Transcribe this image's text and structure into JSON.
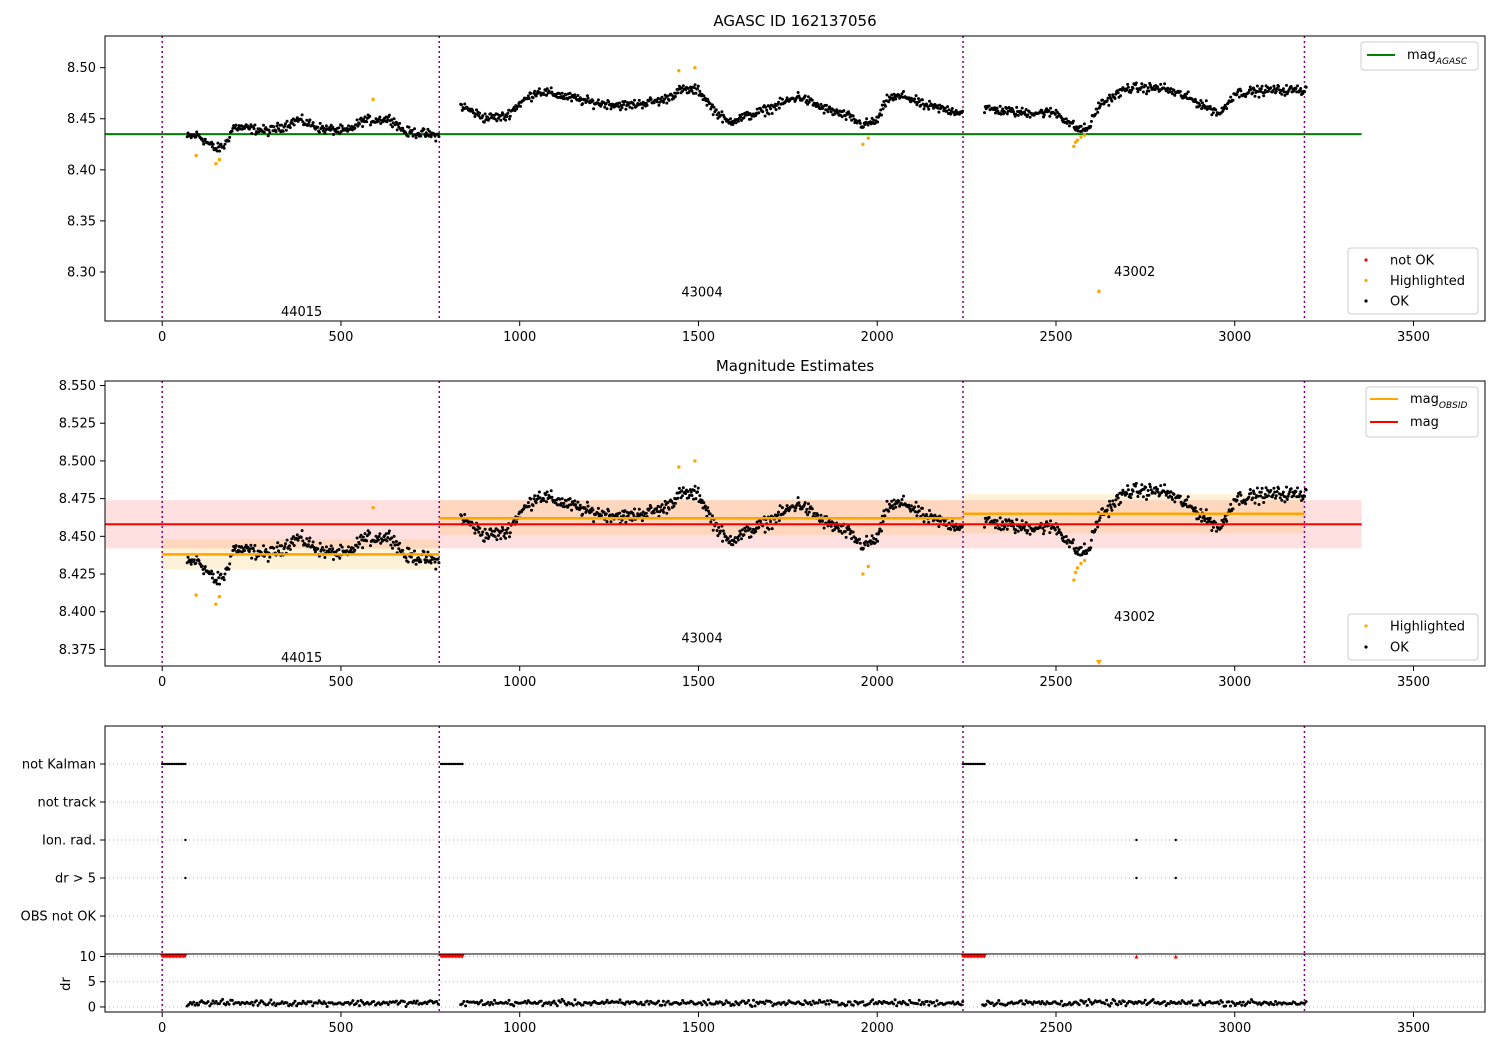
{
  "chart_data": [
    {
      "type": "scatter",
      "title": "AGASC ID 162137056",
      "xlim": [
        -160,
        3700
      ],
      "ylim": [
        8.252,
        8.531
      ],
      "x_ticks": [
        0,
        500,
        1000,
        1500,
        2000,
        2500,
        3000,
        3500
      ],
      "y_ticks": [
        8.3,
        8.35,
        8.4,
        8.45,
        8.5
      ],
      "obs_boundaries": [
        0,
        775,
        2240,
        3195
      ],
      "obs_labels": [
        {
          "text": "44015",
          "x": 390,
          "y": 8.262
        },
        {
          "text": "43004",
          "x": 1510,
          "y": 8.281
        },
        {
          "text": "43002",
          "x": 2720,
          "y": 8.301
        }
      ],
      "reference_lines": [
        {
          "name": "mag_AGASC",
          "y": 8.435,
          "x": [
            -160,
            3355
          ],
          "color": "#008000"
        }
      ],
      "legend_lines": {
        "entries": [
          {
            "label": "mag",
            "sub": "AGASC",
            "color": "#008000"
          }
        ],
        "position": "upper-right"
      },
      "legend_points": {
        "entries": [
          {
            "label": "not OK",
            "color": "#ff0000"
          },
          {
            "label": "Highlighted",
            "color": "#ffa500"
          },
          {
            "label": "OK",
            "color": "#000000"
          }
        ],
        "position": "lower-right"
      },
      "highlighted_points": [
        [
          95,
          8.414
        ],
        [
          150,
          8.406
        ],
        [
          160,
          8.41
        ],
        [
          590,
          8.469
        ],
        [
          1445,
          8.497
        ],
        [
          1490,
          8.5
        ],
        [
          1960,
          8.425
        ],
        [
          1975,
          8.431
        ],
        [
          2550,
          8.423
        ],
        [
          2555,
          8.427
        ],
        [
          2560,
          8.429
        ],
        [
          2570,
          8.432
        ],
        [
          2580,
          8.434
        ],
        [
          2620,
          8.281
        ]
      ],
      "segments": [
        {
          "x": [
            70,
            775
          ],
          "profile": [
            [
              70,
              8.432
            ],
            [
              100,
              8.434
            ],
            [
              150,
              8.42
            ],
            [
              175,
              8.424
            ],
            [
              200,
              8.442
            ],
            [
              300,
              8.438
            ],
            [
              340,
              8.443
            ],
            [
              380,
              8.449
            ],
            [
              450,
              8.44
            ],
            [
              520,
              8.438
            ],
            [
              560,
              8.448
            ],
            [
              640,
              8.45
            ],
            [
              680,
              8.437
            ],
            [
              720,
              8.436
            ],
            [
              775,
              8.433
            ]
          ]
        },
        {
          "x": [
            835,
            2240
          ],
          "profile": [
            [
              835,
              8.463
            ],
            [
              900,
              8.451
            ],
            [
              960,
              8.452
            ],
            [
              1000,
              8.465
            ],
            [
              1050,
              8.477
            ],
            [
              1100,
              8.474
            ],
            [
              1200,
              8.466
            ],
            [
              1300,
              8.463
            ],
            [
              1400,
              8.468
            ],
            [
              1450,
              8.478
            ],
            [
              1500,
              8.478
            ],
            [
              1540,
              8.46
            ],
            [
              1580,
              8.447
            ],
            [
              1650,
              8.454
            ],
            [
              1700,
              8.46
            ],
            [
              1780,
              8.472
            ],
            [
              1850,
              8.46
            ],
            [
              1920,
              8.452
            ],
            [
              1960,
              8.444
            ],
            [
              2000,
              8.448
            ],
            [
              2030,
              8.47
            ],
            [
              2080,
              8.472
            ],
            [
              2130,
              8.463
            ],
            [
              2240,
              8.456
            ]
          ]
        },
        {
          "x": [
            2300,
            3200
          ],
          "profile": [
            [
              2300,
              8.46
            ],
            [
              2400,
              8.456
            ],
            [
              2500,
              8.456
            ],
            [
              2560,
              8.44
            ],
            [
              2590,
              8.44
            ],
            [
              2620,
              8.463
            ],
            [
              2700,
              8.48
            ],
            [
              2800,
              8.48
            ],
            [
              2860,
              8.472
            ],
            [
              2920,
              8.462
            ],
            [
              2960,
              8.455
            ],
            [
              3000,
              8.475
            ],
            [
              3100,
              8.478
            ],
            [
              3200,
              8.478
            ]
          ]
        }
      ]
    },
    {
      "type": "scatter",
      "title": "Magnitude Estimates",
      "xlim": [
        -160,
        3700
      ],
      "ylim": [
        8.364,
        8.553
      ],
      "x_ticks": [
        0,
        500,
        1000,
        1500,
        2000,
        2500,
        3000,
        3500
      ],
      "y_ticks": [
        8.375,
        8.4,
        8.425,
        8.45,
        8.475,
        8.5,
        8.525,
        8.55
      ],
      "obs_boundaries": [
        0,
        775,
        2240,
        3195
      ],
      "obs_labels": [
        {
          "text": "44015",
          "x": 390,
          "y": 8.37
        },
        {
          "text": "43004",
          "x": 1510,
          "y": 8.383
        },
        {
          "text": "43002",
          "x": 2720,
          "y": 8.397
        }
      ],
      "mag": {
        "name": "mag",
        "y": 8.458,
        "band": [
          8.442,
          8.474
        ],
        "x": [
          -160,
          3355
        ],
        "color": "#ff0000",
        "band_color": "#ffcccc"
      },
      "mag_obsid": [
        {
          "x": [
            0,
            775
          ],
          "y": 8.438,
          "band": [
            8.428,
            8.448
          ]
        },
        {
          "x": [
            775,
            2240
          ],
          "y": 8.462,
          "band": [
            8.451,
            8.474
          ]
        },
        {
          "x": [
            2240,
            3195
          ],
          "y": 8.465,
          "band": [
            8.452,
            8.478
          ]
        }
      ],
      "mag_obsid_color": "#ffa500",
      "legend_lines": {
        "entries": [
          {
            "label": "mag",
            "sub": "OBSID",
            "color": "#ffa500"
          },
          {
            "label": "mag",
            "sub": "",
            "color": "#ff0000"
          }
        ],
        "position": "upper-right"
      },
      "legend_points": {
        "entries": [
          {
            "label": "Highlighted",
            "color": "#ffa500"
          },
          {
            "label": "OK",
            "color": "#000000"
          }
        ],
        "position": "lower-right"
      },
      "highlighted_points": [
        [
          95,
          8.411
        ],
        [
          150,
          8.405
        ],
        [
          160,
          8.41
        ],
        [
          590,
          8.469
        ],
        [
          1445,
          8.496
        ],
        [
          1490,
          8.5
        ],
        [
          1960,
          8.425
        ],
        [
          1975,
          8.43
        ],
        [
          2550,
          8.421
        ],
        [
          2555,
          8.426
        ],
        [
          2560,
          8.429
        ],
        [
          2570,
          8.432
        ],
        [
          2580,
          8.434
        ]
      ],
      "offscale_marker": {
        "x": 2620,
        "color": "#ffa500"
      }
    },
    {
      "type": "scatter",
      "title": "",
      "xlim": [
        -160,
        3700
      ],
      "x_ticks": [
        0,
        500,
        1000,
        1500,
        2000,
        2500,
        3000,
        3500
      ],
      "obs_boundaries": [
        0,
        775,
        2240,
        3195
      ],
      "flag_rows": [
        "not Kalman",
        "not track",
        "Ion. rad.",
        "dr > 5",
        "OBS not OK"
      ],
      "flags": {
        "not Kalman": [
          [
            0,
            65
          ],
          [
            780,
            840
          ],
          [
            2240,
            2300
          ]
        ],
        "not track": [],
        "Ion. rad.": [
          [
            65,
            65
          ],
          [
            2725,
            2725
          ],
          [
            2835,
            2835
          ]
        ],
        "dr > 5": [
          [
            65,
            65
          ],
          [
            2725,
            2725
          ],
          [
            2835,
            2835
          ]
        ],
        "OBS not OK": []
      },
      "dr_panel": {
        "ylabel": "dr",
        "y_ticks": [
          0,
          5,
          10
        ],
        "ylim": [
          -1,
          10.5
        ],
        "clipped_value": 10,
        "clipped_ranges": [
          [
            0,
            65
          ],
          [
            780,
            840
          ],
          [
            2240,
            2300
          ]
        ],
        "clipped_points": [
          2725,
          2835
        ],
        "data_ranges": [
          [
            70,
            775
          ],
          [
            835,
            2240
          ],
          [
            2295,
            3200
          ]
        ],
        "typical_range": [
          0,
          1.8
        ]
      }
    }
  ]
}
